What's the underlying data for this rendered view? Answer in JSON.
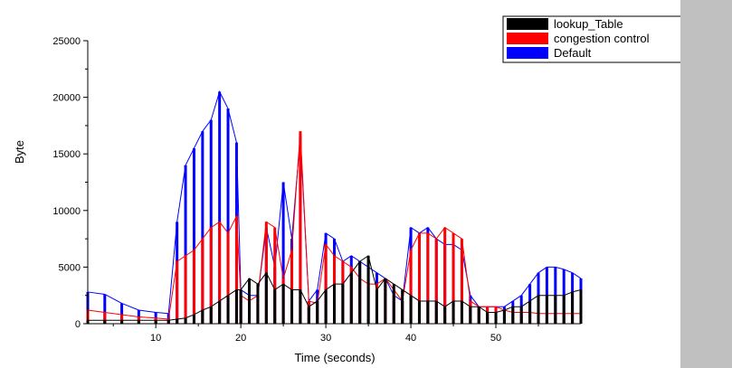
{
  "chart_data": {
    "type": "line",
    "title": "",
    "xlabel": "Time (seconds)",
    "ylabel": "Byte",
    "xlim": [
      2,
      60
    ],
    "ylim": [
      0,
      25000
    ],
    "x_ticks": [
      10,
      20,
      30,
      40,
      50
    ],
    "y_ticks": [
      0,
      5000,
      10000,
      15000,
      20000,
      25000
    ],
    "x_tick_labels": [
      "10",
      "20",
      "30",
      "40",
      "50"
    ],
    "y_tick_labels": [
      "0",
      "5000",
      "10000",
      "15000",
      "20000",
      "25000"
    ],
    "grid": false,
    "legend_position": "top-right",
    "series": [
      {
        "name": "Default",
        "color": "#0000ff",
        "x": [
          2,
          4,
          6,
          8,
          10,
          11.5,
          12.5,
          13.5,
          14.5,
          15.5,
          16.5,
          17.5,
          18.5,
          19.5,
          20,
          21,
          22,
          23,
          24,
          25,
          26,
          27,
          28,
          29,
          30,
          31,
          32,
          33,
          34,
          35,
          36,
          37,
          38,
          39,
          40,
          41,
          42,
          43,
          44,
          45,
          46,
          47,
          48,
          49,
          50,
          51,
          52,
          53,
          54,
          55,
          56,
          57,
          58,
          59,
          60
        ],
        "values": [
          2800,
          2600,
          1800,
          1200,
          1000,
          900,
          9000,
          14000,
          15500,
          17000,
          18000,
          20500,
          19000,
          16000,
          3000,
          2500,
          2500,
          8500,
          5000,
          12500,
          7500,
          16500,
          2000,
          3000,
          8000,
          7500,
          5500,
          6000,
          5500,
          5000,
          4500,
          4000,
          2500,
          2000,
          8500,
          8000,
          8500,
          7500,
          7000,
          7000,
          6500,
          2500,
          1500,
          1500,
          1500,
          1500,
          2000,
          2500,
          3500,
          4500,
          5000,
          5000,
          4800,
          4500,
          4000
        ]
      },
      {
        "name": "congestion control",
        "color": "#ff0000",
        "x": [
          2,
          4,
          6,
          8,
          10,
          11.5,
          12.5,
          13.5,
          14.5,
          15.5,
          16.5,
          17.5,
          18.5,
          19.5,
          20,
          21,
          22,
          23,
          24,
          25,
          26,
          27,
          28,
          29,
          30,
          31,
          32,
          33,
          34,
          35,
          36,
          37,
          38,
          39,
          40,
          41,
          42,
          43,
          44,
          45,
          46,
          47,
          48,
          49,
          50,
          51,
          52,
          53,
          54,
          55,
          56,
          57,
          58,
          59,
          60
        ],
        "values": [
          1200,
          1000,
          800,
          600,
          500,
          400,
          5500,
          6000,
          6500,
          7500,
          8500,
          9000,
          8000,
          9500,
          2500,
          2000,
          2500,
          9000,
          8500,
          4000,
          6500,
          17000,
          2000,
          1800,
          7000,
          6000,
          5500,
          5000,
          4000,
          3500,
          3500,
          4000,
          3000,
          2000,
          6500,
          8000,
          8000,
          7500,
          8500,
          8000,
          7500,
          2000,
          1500,
          1500,
          1500,
          1200,
          1000,
          1000,
          1000,
          900,
          900,
          900,
          900,
          900,
          900
        ]
      },
      {
        "name": "lookup_Table",
        "color": "#000000",
        "x": [
          2,
          4,
          6,
          8,
          10,
          11.5,
          12.5,
          13.5,
          14.5,
          15.5,
          16.5,
          17.5,
          18.5,
          19.5,
          20,
          21,
          22,
          23,
          24,
          25,
          26,
          27,
          28,
          29,
          30,
          31,
          32,
          33,
          34,
          35,
          36,
          37,
          38,
          39,
          40,
          41,
          42,
          43,
          44,
          45,
          46,
          47,
          48,
          49,
          50,
          51,
          52,
          53,
          54,
          55,
          56,
          57,
          58,
          59,
          60
        ],
        "values": [
          300,
          300,
          300,
          300,
          300,
          300,
          400,
          500,
          800,
          1200,
          1500,
          2000,
          2500,
          3000,
          3000,
          4000,
          3500,
          4500,
          3000,
          3500,
          3000,
          3000,
          1500,
          2000,
          3000,
          3500,
          3500,
          4500,
          5500,
          6000,
          3000,
          4000,
          3500,
          3000,
          2500,
          2000,
          2000,
          2000,
          1500,
          2000,
          2000,
          1500,
          1500,
          1000,
          1000,
          1200,
          1500,
          1500,
          2000,
          2500,
          2500,
          2500,
          2500,
          2800,
          3000
        ]
      }
    ]
  },
  "colors": {
    "side_panel": "#c0c0c0",
    "axis": "#000000"
  }
}
